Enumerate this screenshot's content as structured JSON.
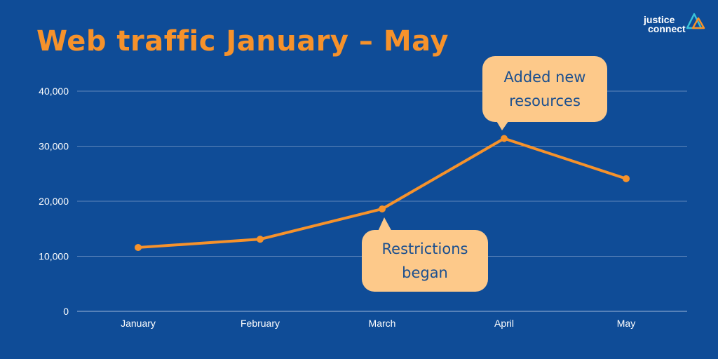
{
  "title": "Web traffic January – May",
  "logo": {
    "line1": "justice",
    "line2": "connect"
  },
  "colors": {
    "background": "#0f4c97",
    "accent": "#f6922b",
    "callout": "#fdc98a",
    "gridline": "#5f86bb",
    "text": "#ffffff"
  },
  "annotations": {
    "april": {
      "line1": "Added new",
      "line2": "resources"
    },
    "march": {
      "line1": "Restrictions",
      "line2": "began"
    }
  },
  "chart_data": {
    "type": "line",
    "title": "Web traffic January – May",
    "categories": [
      "January",
      "February",
      "March",
      "April",
      "May"
    ],
    "values": [
      11600,
      13100,
      18600,
      31400,
      24100
    ],
    "ylim": [
      0,
      40000
    ],
    "yticks": [
      0,
      10000,
      20000,
      30000,
      40000
    ],
    "ytick_labels": [
      "0",
      "10,000",
      "20,000",
      "30,000",
      "40,000"
    ],
    "grid": true,
    "legend": "none"
  }
}
